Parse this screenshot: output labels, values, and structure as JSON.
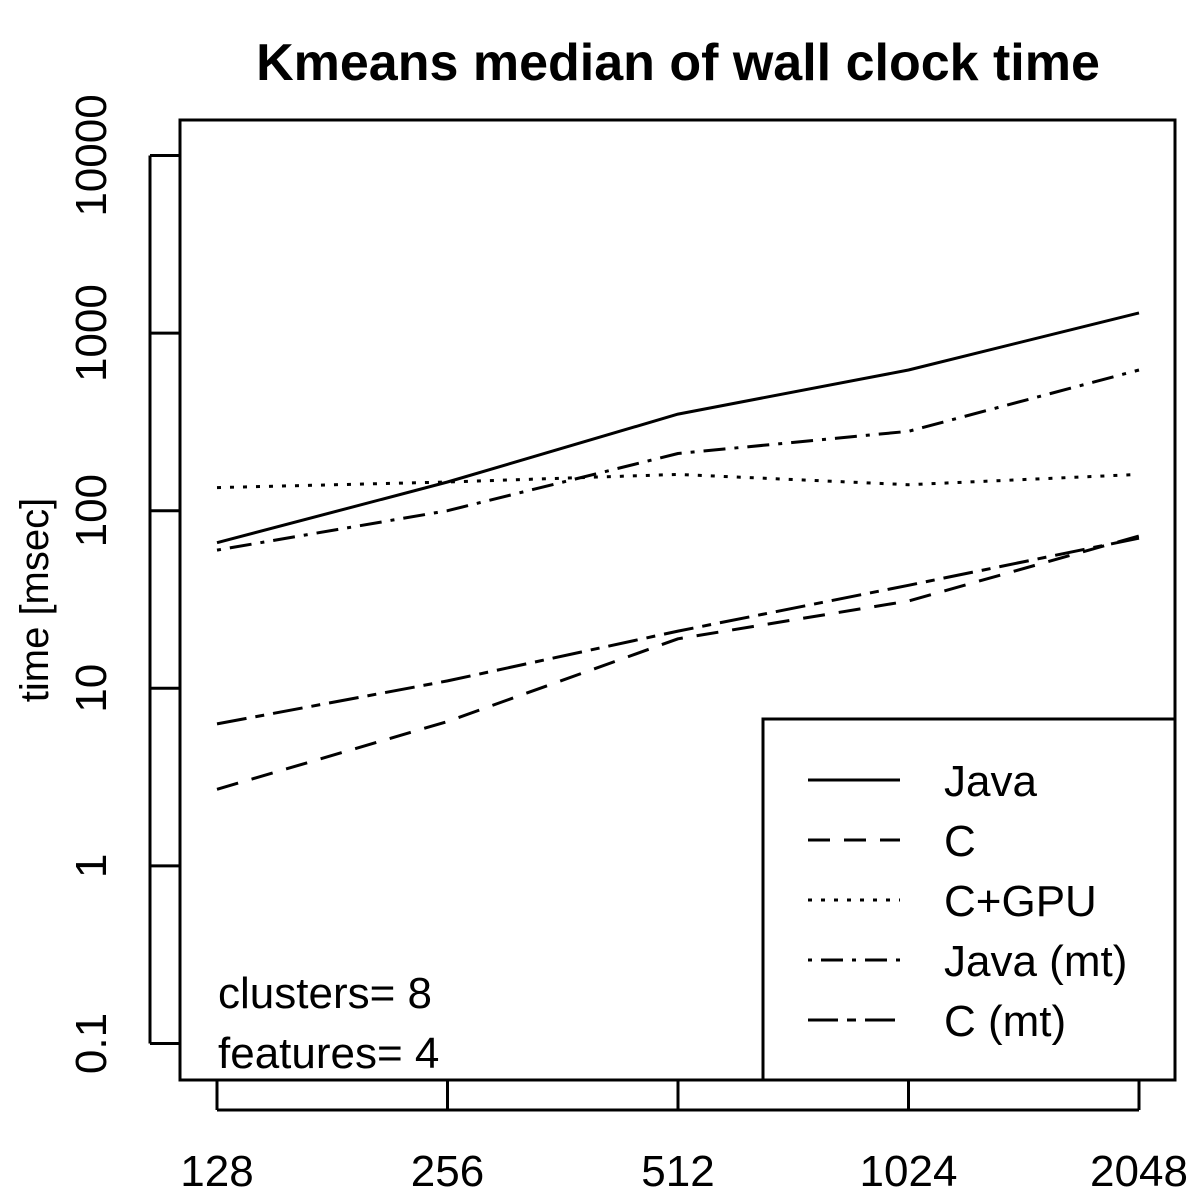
{
  "chart_data": {
    "type": "line",
    "title": "Kmeans median of wall clock time",
    "xlabel": "",
    "ylabel": "time [msec]",
    "y_scale": "log10",
    "ylim": [
      0.1,
      10000
    ],
    "y_ticks": [
      0.1,
      1,
      10,
      100,
      1000,
      10000
    ],
    "y_tick_labels": [
      "0.1",
      "1",
      "10",
      "100",
      "1000",
      "10000"
    ],
    "x": [
      128,
      256,
      512,
      1024,
      2048
    ],
    "x_tick_labels": [
      "128",
      "256",
      "512",
      "1024",
      "2048"
    ],
    "series": [
      {
        "name": "Java",
        "values": [
          66,
          145,
          350,
          620,
          1300
        ],
        "dash": "solid"
      },
      {
        "name": "C",
        "values": [
          2.7,
          6.5,
          19,
          31,
          72
        ],
        "dash": "dashed"
      },
      {
        "name": "C+GPU",
        "values": [
          135,
          145,
          160,
          140,
          160
        ],
        "dash": "dotted"
      },
      {
        "name": "Java (mt)",
        "values": [
          60,
          100,
          210,
          280,
          620
        ],
        "dash": "dotdash"
      },
      {
        "name": "C (mt)",
        "values": [
          6.3,
          11,
          21,
          38,
          70
        ],
        "dash": "longdash"
      }
    ],
    "legend_position": "bottom-right",
    "annotations": [
      "clusters= 8",
      "features= 4"
    ],
    "grid": false
  }
}
